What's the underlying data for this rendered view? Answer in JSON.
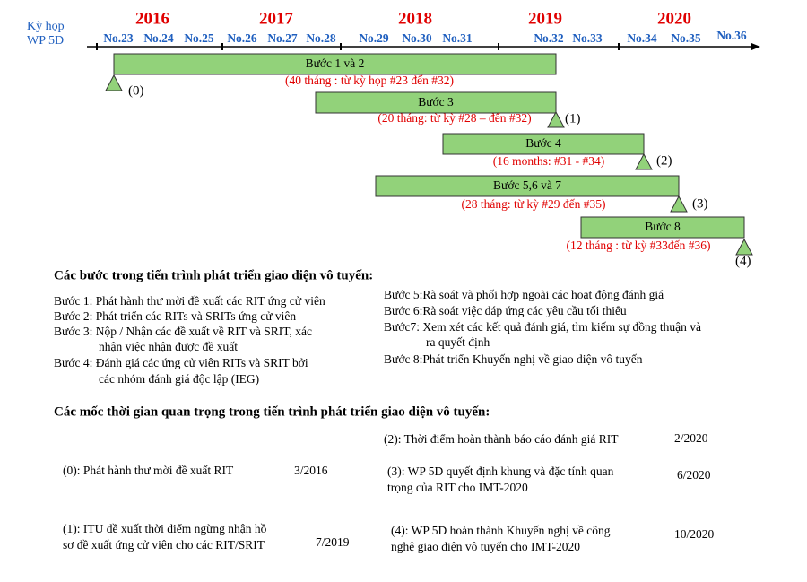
{
  "header": {
    "lines": [
      "Kỳ họp",
      "WP 5D"
    ]
  },
  "years": [
    "2016",
    "2017",
    "2018",
    "2019",
    "2020"
  ],
  "meetings": [
    "No.23",
    "No.24",
    "No.25",
    "No.26",
    "No.27",
    "No.28",
    "No.29",
    "No.30",
    "No.31",
    "No.32",
    "No.33",
    "No.34",
    "No.35",
    "No.36"
  ],
  "bars": [
    {
      "label": "Bước 1 và 2",
      "note": "(40 tháng : từ kỳ họp #23 đến #32)",
      "milestone": "(0)"
    },
    {
      "label": "Bước 3",
      "note": "(20 tháng: từ kỳ #28 – đến #32)",
      "milestone": "(1)"
    },
    {
      "label": "Bước  4",
      "note": "(16 months: #31 - #34)",
      "milestone": "(2)"
    },
    {
      "label": "Bước 5,6 và 7",
      "note": "(28 tháng: từ kỳ #29 đến #35)",
      "milestone": "(3)"
    },
    {
      "label": "Bước 8",
      "note": "(12 tháng : từ kỳ #33đến #36)",
      "milestone": "(4)"
    }
  ],
  "steps_title": "Các bước trong tiến trình phát triển giao diện vô tuyến:",
  "steps_left": [
    "Bước 1: Phát hành thư mời đề xuất các RIT ứng cử viên",
    "Bước 2: Phát triển các RITs và SRITs ứng cử viên",
    "Bước 3:  Nộp / Nhận các đề xuất về RIT và SRIT, xác",
    "nhận việc nhận được đề xuất",
    "Bước 4: Đánh giá các ứng cử viên RITs và SRIT bởi",
    "các nhóm đánh giá độc lập (IEG)"
  ],
  "steps_right": [
    "Bước 5:Rà soát và phối hợp ngoài các hoạt động đánh giá",
    "Bước 6:Rà soát việc đáp ứng các yêu cầu tối thiểu",
    "Bước7: Xem xét các kết quả đánh giá, tìm kiếm sự đồng thuận và",
    "ra quyết định",
    "Bước 8:Phát triển Khuyến nghị về giao diện vô tuyến"
  ],
  "milestones_title": "Các mốc thời gian quan trọng trong tiến trình phát triển giao diện vô tuyến:",
  "milestones": [
    {
      "lines": [
        "(2): Thời điểm hoàn thành báo cáo đánh giá RIT"
      ],
      "date": "2/2020"
    },
    {
      "lines": [
        "(0): Phát hành thư mời đề xuất RIT"
      ],
      "date": "3/2016"
    },
    {
      "lines": [
        "(3): WP 5D quyết định khung và đặc tính quan",
        "trọng của RIT cho IMT-2020"
      ],
      "date": "6/2020"
    },
    {
      "lines": [
        "(1): ITU đề xuất thời điểm ngừng nhận hồ",
        "sơ đề xuất ứng cử viên cho các RIT/SRIT"
      ],
      "date": "7/2019"
    },
    {
      "lines": [
        "(4): WP 5D hoàn thành Khuyến nghị về công",
        "nghệ giao diện vô tuyến cho IMT-2020"
      ],
      "date": "10/2020"
    }
  ]
}
